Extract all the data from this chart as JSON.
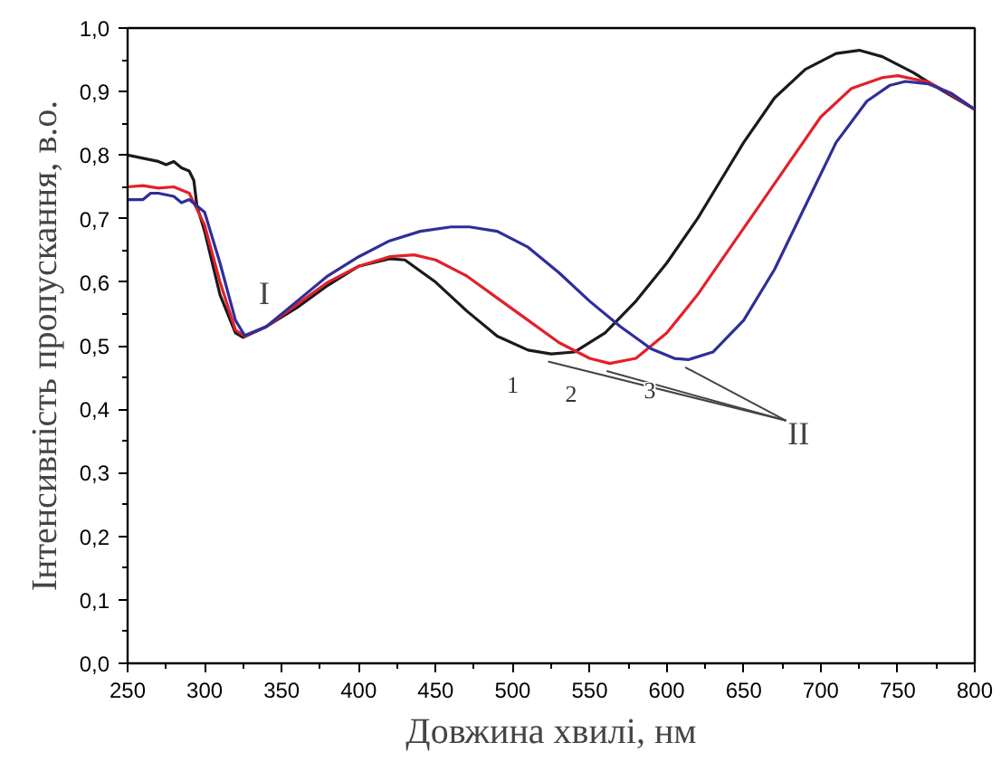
{
  "chart_data": {
    "type": "line",
    "xlabel": "Довжина хвилі, нм",
    "ylabel": "Інтенсивність пропускання, в.о.",
    "xlim": [
      250,
      800
    ],
    "ylim": [
      0,
      1.0
    ],
    "xticks": [
      250,
      300,
      350,
      400,
      450,
      500,
      550,
      600,
      650,
      700,
      750,
      800
    ],
    "yticks": [
      {
        "value": 0,
        "label": "0,0"
      },
      {
        "value": 0.1,
        "label": "0,1"
      },
      {
        "value": 0.2,
        "label": "0,2"
      },
      {
        "value": 0.3,
        "label": "0,3"
      },
      {
        "value": 0.4,
        "label": "0,4"
      },
      {
        "value": 0.5,
        "label": "0,5"
      },
      {
        "value": 0.6,
        "label": "0,6"
      },
      {
        "value": 0.7,
        "label": "0,7"
      },
      {
        "value": 0.8,
        "label": "0,8"
      },
      {
        "value": 0.9,
        "label": "0,9"
      },
      {
        "value": 1.0,
        "label": "1,0"
      }
    ],
    "grid": false,
    "marker": "none",
    "line_style": "solid",
    "annotations": [
      "I",
      "II"
    ],
    "series": [
      {
        "name": "1",
        "color": "#1a1a1a",
        "x": [
          250,
          260,
          270,
          275,
          280,
          285,
          290,
          293,
          295,
          300,
          310,
          320,
          325,
          340,
          360,
          380,
          400,
          420,
          430,
          450,
          470,
          490,
          510,
          525,
          540,
          560,
          580,
          600,
          620,
          635,
          650,
          670,
          690,
          710,
          725,
          740,
          760,
          780,
          800
        ],
        "values": [
          0.8,
          0.795,
          0.79,
          0.785,
          0.79,
          0.78,
          0.775,
          0.76,
          0.72,
          0.68,
          0.58,
          0.52,
          0.513,
          0.53,
          0.56,
          0.595,
          0.625,
          0.637,
          0.635,
          0.6,
          0.555,
          0.515,
          0.493,
          0.487,
          0.49,
          0.52,
          0.57,
          0.63,
          0.7,
          0.76,
          0.82,
          0.89,
          0.935,
          0.96,
          0.965,
          0.955,
          0.93,
          0.9,
          0.872
        ]
      },
      {
        "name": "2",
        "color": "#e3202a",
        "x": [
          250,
          260,
          270,
          280,
          290,
          300,
          310,
          320,
          326,
          340,
          360,
          380,
          400,
          420,
          436,
          450,
          470,
          490,
          510,
          530,
          550,
          563,
          580,
          600,
          620,
          640,
          660,
          680,
          700,
          720,
          740,
          750,
          770,
          785,
          800
        ],
        "values": [
          0.75,
          0.752,
          0.748,
          0.75,
          0.74,
          0.69,
          0.6,
          0.525,
          0.515,
          0.53,
          0.565,
          0.6,
          0.625,
          0.64,
          0.643,
          0.635,
          0.61,
          0.575,
          0.54,
          0.505,
          0.48,
          0.472,
          0.48,
          0.52,
          0.58,
          0.65,
          0.72,
          0.79,
          0.86,
          0.905,
          0.922,
          0.925,
          0.915,
          0.895,
          0.872
        ]
      },
      {
        "name": "3",
        "color": "#2e2e9a",
        "x": [
          250,
          260,
          265,
          270,
          280,
          285,
          290,
          300,
          310,
          320,
          326,
          340,
          360,
          380,
          400,
          420,
          440,
          460,
          472,
          490,
          510,
          530,
          550,
          570,
          590,
          605,
          614,
          630,
          650,
          670,
          690,
          710,
          730,
          745,
          755,
          770,
          785,
          800
        ],
        "values": [
          0.73,
          0.73,
          0.74,
          0.74,
          0.735,
          0.725,
          0.73,
          0.71,
          0.63,
          0.54,
          0.516,
          0.53,
          0.57,
          0.61,
          0.64,
          0.665,
          0.68,
          0.687,
          0.687,
          0.68,
          0.655,
          0.615,
          0.57,
          0.53,
          0.495,
          0.48,
          0.478,
          0.49,
          0.54,
          0.62,
          0.72,
          0.82,
          0.885,
          0.91,
          0.916,
          0.912,
          0.897,
          0.872
        ]
      }
    ]
  }
}
